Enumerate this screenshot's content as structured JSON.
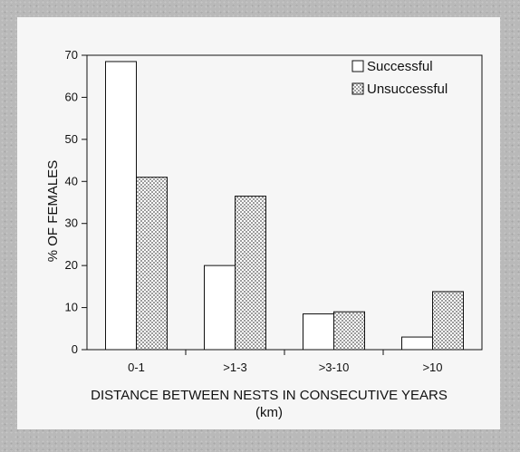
{
  "chart_data": {
    "type": "bar",
    "title": "",
    "categories": [
      "0-1",
      ">1-3",
      ">3-10",
      ">10"
    ],
    "series": [
      {
        "name": "Successful",
        "values": [
          68.5,
          20,
          8.5,
          3
        ],
        "color": "#ffffff",
        "pattern": "none"
      },
      {
        "name": "Unsuccessful",
        "values": [
          41,
          36.5,
          9,
          13.8
        ],
        "color": "#d9d9d9",
        "pattern": "dotted"
      }
    ],
    "xlabel_line1": "DISTANCE BETWEEN NESTS IN CONSECUTIVE YEARS",
    "xlabel_line2": "(km)",
    "ylabel": "% OF FEMALES",
    "ylim": [
      0,
      70
    ],
    "yticks": [
      0,
      10,
      20,
      30,
      40,
      50,
      60,
      70
    ],
    "legend_position": "top-right",
    "grid": false
  }
}
